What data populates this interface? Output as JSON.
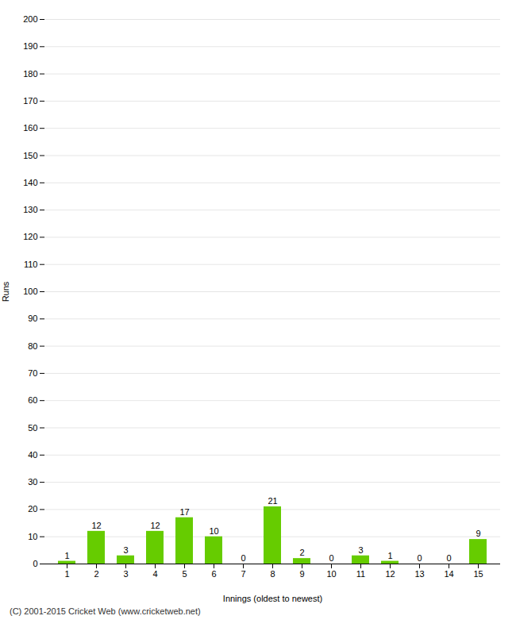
{
  "chart_data": {
    "type": "bar",
    "xlabel": "Innings (oldest to newest)",
    "ylabel": "Runs",
    "categories": [
      "1",
      "2",
      "3",
      "4",
      "5",
      "6",
      "7",
      "8",
      "9",
      "10",
      "11",
      "12",
      "13",
      "14",
      "15"
    ],
    "values": [
      1,
      12,
      3,
      12,
      17,
      10,
      0,
      21,
      2,
      0,
      3,
      1,
      0,
      0,
      9
    ],
    "color": "#66cc00",
    "ylim": [
      0,
      200
    ],
    "yticks": [
      0,
      10,
      20,
      30,
      40,
      50,
      60,
      70,
      80,
      90,
      100,
      110,
      120,
      130,
      140,
      150,
      160,
      170,
      180,
      190,
      200
    ],
    "grid": true,
    "data_labels": true,
    "caption": "(C) 2001-2015 Cricket Web (www.cricketweb.net)"
  }
}
